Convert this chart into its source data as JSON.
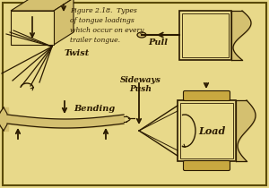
{
  "bg_color": "#e8d98a",
  "border_color": "#5a4a00",
  "line_color": "#2a1a00",
  "title_text": "Figure 2.18.  Types\nof tongue loadings\nwhich occur on every\ntrailer tongue.",
  "title_fontsize": 5.5,
  "label_twist": "Twist",
  "label_pull": "Pull",
  "label_bending": "Bending",
  "label_sideways": "Sideways\nPush",
  "label_load": "Load",
  "arrow_color": "#2a1a00",
  "fill_color": "#d4c070",
  "axle_color": "#c8a840"
}
